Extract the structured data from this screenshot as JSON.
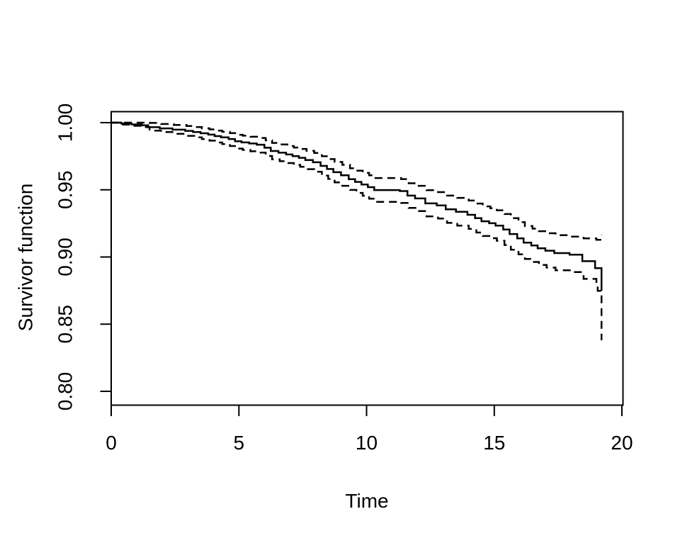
{
  "figure": {
    "background": "#ffffff",
    "line_color": "#000000"
  },
  "chart_data": {
    "type": "line",
    "subtype": "kaplan-meier-step-curve-with-confidence-bands",
    "title": "",
    "xlabel": "Time",
    "ylabel": "Survivor function",
    "xlim": [
      0,
      20
    ],
    "ylim": [
      0.8,
      1.0
    ],
    "x_ticks": [
      0,
      5,
      10,
      15,
      20
    ],
    "x_tick_labels": [
      "0",
      "5",
      "10",
      "15",
      "20"
    ],
    "y_ticks": [
      1.0,
      0.95,
      0.9,
      0.85,
      0.8
    ],
    "y_tick_labels": [
      "1.00",
      "0.95",
      "0.90",
      "0.85",
      "0.80"
    ],
    "grid": false,
    "legend": "none",
    "series": [
      {
        "name": "survivor-estimate",
        "line_style": "solid",
        "points": [
          [
            0,
            1.0
          ],
          [
            0.4,
            0.9993
          ],
          [
            0.8,
            0.9987
          ],
          [
            1.2,
            0.998
          ],
          [
            1.45,
            0.9966
          ],
          [
            1.9,
            0.9957
          ],
          [
            2.4,
            0.9948
          ],
          [
            2.9,
            0.9939
          ],
          [
            3.2,
            0.993
          ],
          [
            3.5,
            0.9921
          ],
          [
            3.8,
            0.9911
          ],
          [
            4.05,
            0.99
          ],
          [
            4.3,
            0.989
          ],
          [
            4.6,
            0.9878
          ],
          [
            4.85,
            0.9862
          ],
          [
            5.1,
            0.9853
          ],
          [
            5.4,
            0.9845
          ],
          [
            5.7,
            0.9836
          ],
          [
            6.0,
            0.9813
          ],
          [
            6.25,
            0.9789
          ],
          [
            6.55,
            0.9776
          ],
          [
            6.85,
            0.9763
          ],
          [
            7.1,
            0.9751
          ],
          [
            7.35,
            0.9738
          ],
          [
            7.6,
            0.9722
          ],
          [
            7.9,
            0.9705
          ],
          [
            8.2,
            0.9678
          ],
          [
            8.45,
            0.9655
          ],
          [
            8.7,
            0.9631
          ],
          [
            9.0,
            0.9608
          ],
          [
            9.3,
            0.9579
          ],
          [
            9.55,
            0.9559
          ],
          [
            9.8,
            0.954
          ],
          [
            10.05,
            0.952
          ],
          [
            10.3,
            0.9498
          ],
          [
            11.3,
            0.9491
          ],
          [
            11.6,
            0.9457
          ],
          [
            11.9,
            0.9436
          ],
          [
            12.3,
            0.9399
          ],
          [
            12.75,
            0.9384
          ],
          [
            13.1,
            0.9355
          ],
          [
            13.5,
            0.9336
          ],
          [
            13.95,
            0.9314
          ],
          [
            14.25,
            0.9289
          ],
          [
            14.5,
            0.9266
          ],
          [
            14.8,
            0.9251
          ],
          [
            15.05,
            0.9234
          ],
          [
            15.35,
            0.9204
          ],
          [
            15.6,
            0.9171
          ],
          [
            15.9,
            0.9139
          ],
          [
            16.15,
            0.9107
          ],
          [
            16.45,
            0.9086
          ],
          [
            16.7,
            0.9065
          ],
          [
            17.0,
            0.9047
          ],
          [
            17.35,
            0.9029
          ],
          [
            17.95,
            0.9017
          ],
          [
            18.45,
            0.8969
          ],
          [
            18.95,
            0.8917
          ],
          [
            19.2,
            0.8748
          ]
        ]
      },
      {
        "name": "upper-95-confidence-band",
        "line_style": "dashed",
        "points": [
          [
            0,
            1.0
          ],
          [
            1.5,
            0.9998
          ],
          [
            1.95,
            0.999
          ],
          [
            2.45,
            0.9983
          ],
          [
            2.95,
            0.9975
          ],
          [
            3.25,
            0.9967
          ],
          [
            3.55,
            0.9958
          ],
          [
            3.85,
            0.995
          ],
          [
            4.1,
            0.9941
          ],
          [
            4.35,
            0.9932
          ],
          [
            4.65,
            0.9922
          ],
          [
            4.9,
            0.991
          ],
          [
            5.15,
            0.9903
          ],
          [
            5.45,
            0.9895
          ],
          [
            5.75,
            0.9886
          ],
          [
            6.05,
            0.9868
          ],
          [
            6.3,
            0.9849
          ],
          [
            6.6,
            0.9838
          ],
          [
            6.9,
            0.9826
          ],
          [
            7.15,
            0.9815
          ],
          [
            7.4,
            0.9804
          ],
          [
            7.65,
            0.979
          ],
          [
            7.95,
            0.9774
          ],
          [
            8.25,
            0.975
          ],
          [
            8.5,
            0.9729
          ],
          [
            8.75,
            0.9707
          ],
          [
            9.05,
            0.9686
          ],
          [
            9.35,
            0.966
          ],
          [
            9.6,
            0.9643
          ],
          [
            9.85,
            0.9626
          ],
          [
            10.1,
            0.9608
          ],
          [
            10.35,
            0.9588
          ],
          [
            11.35,
            0.958
          ],
          [
            11.65,
            0.9549
          ],
          [
            11.95,
            0.953
          ],
          [
            12.35,
            0.9497
          ],
          [
            12.8,
            0.9483
          ],
          [
            13.15,
            0.9457
          ],
          [
            13.55,
            0.944
          ],
          [
            14.0,
            0.942
          ],
          [
            14.3,
            0.9398
          ],
          [
            14.55,
            0.9377
          ],
          [
            14.85,
            0.9363
          ],
          [
            15.1,
            0.9348
          ],
          [
            15.4,
            0.932
          ],
          [
            15.65,
            0.9289
          ],
          [
            15.95,
            0.9259
          ],
          [
            16.2,
            0.923
          ],
          [
            16.5,
            0.9211
          ],
          [
            16.75,
            0.9192
          ],
          [
            17.05,
            0.9177
          ],
          [
            17.4,
            0.9162
          ],
          [
            18.0,
            0.9152
          ],
          [
            18.5,
            0.9139
          ],
          [
            19.0,
            0.9128
          ],
          [
            19.2,
            0.9165
          ]
        ]
      },
      {
        "name": "lower-95-confidence-band",
        "line_style": "dashed",
        "points": [
          [
            0,
            1.0
          ],
          [
            0.35,
            0.9985
          ],
          [
            0.8,
            0.9976
          ],
          [
            1.2,
            0.9967
          ],
          [
            1.5,
            0.9941
          ],
          [
            1.95,
            0.993
          ],
          [
            2.45,
            0.9917
          ],
          [
            2.95,
            0.9902
          ],
          [
            3.25,
            0.989
          ],
          [
            3.55,
            0.9878
          ],
          [
            3.85,
            0.9866
          ],
          [
            4.1,
            0.9852
          ],
          [
            4.35,
            0.984
          ],
          [
            4.65,
            0.9826
          ],
          [
            4.9,
            0.9807
          ],
          [
            5.15,
            0.9797
          ],
          [
            5.45,
            0.9787
          ],
          [
            5.75,
            0.9777
          ],
          [
            6.05,
            0.9752
          ],
          [
            6.3,
            0.9727
          ],
          [
            6.6,
            0.9713
          ],
          [
            6.9,
            0.9699
          ],
          [
            7.15,
            0.9686
          ],
          [
            7.4,
            0.9672
          ],
          [
            7.65,
            0.9654
          ],
          [
            7.95,
            0.9635
          ],
          [
            8.25,
            0.9606
          ],
          [
            8.5,
            0.9581
          ],
          [
            8.75,
            0.9555
          ],
          [
            9.05,
            0.953
          ],
          [
            9.35,
            0.9499
          ],
          [
            9.6,
            0.9477
          ],
          [
            9.85,
            0.9456
          ],
          [
            10.1,
            0.9434
          ],
          [
            10.35,
            0.941
          ],
          [
            11.35,
            0.9402
          ],
          [
            11.65,
            0.9365
          ],
          [
            11.95,
            0.9342
          ],
          [
            12.35,
            0.9302
          ],
          [
            12.8,
            0.9286
          ],
          [
            13.15,
            0.9254
          ],
          [
            13.55,
            0.9233
          ],
          [
            14.0,
            0.9209
          ],
          [
            14.3,
            0.9182
          ],
          [
            14.55,
            0.9156
          ],
          [
            14.85,
            0.914
          ],
          [
            15.1,
            0.9121
          ],
          [
            15.4,
            0.9089
          ],
          [
            15.65,
            0.9054
          ],
          [
            15.95,
            0.902
          ],
          [
            16.2,
            0.8986
          ],
          [
            16.5,
            0.8963
          ],
          [
            16.75,
            0.8941
          ],
          [
            17.05,
            0.8921
          ],
          [
            17.4,
            0.8901
          ],
          [
            18.0,
            0.8888
          ],
          [
            18.5,
            0.8837
          ],
          [
            19.0,
            0.8782
          ],
          [
            19.05,
            0.8748
          ],
          [
            19.2,
            0.838
          ]
        ]
      }
    ]
  }
}
